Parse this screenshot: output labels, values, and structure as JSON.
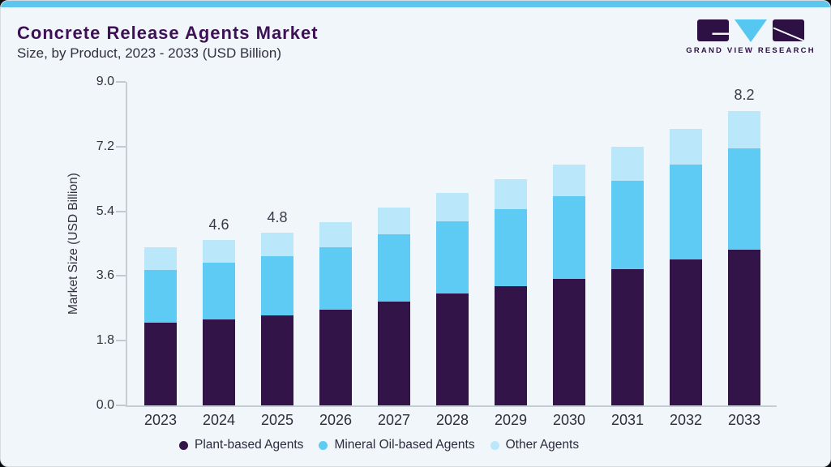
{
  "header": {
    "title": "Concrete Release Agents Market",
    "subtitle": "Size, by Product, 2023 - 2033 (USD Billion)",
    "brand_name": "GRAND VIEW RESEARCH"
  },
  "chart_data": {
    "type": "bar",
    "stacked": true,
    "title": "Concrete Release Agents Market Size, by Product, 2023 - 2033 (USD Billion)",
    "categories": [
      "2023",
      "2024",
      "2025",
      "2026",
      "2027",
      "2028",
      "2029",
      "2030",
      "2031",
      "2032",
      "2033"
    ],
    "series": [
      {
        "key": "plant",
        "name": "Plant-based Agents",
        "color": "#331449",
        "values": [
          2.3,
          2.4,
          2.51,
          2.67,
          2.89,
          3.11,
          3.32,
          3.53,
          3.79,
          4.06,
          4.33
        ]
      },
      {
        "key": "mineral",
        "name": "Mineral Oil-based Agents",
        "color": "#5ecbf5",
        "values": [
          1.47,
          1.56,
          1.63,
          1.72,
          1.86,
          2.01,
          2.14,
          2.29,
          2.46,
          2.65,
          2.83
        ]
      },
      {
        "key": "other",
        "name": "Other Agents",
        "color": "#bae7fa",
        "values": [
          0.63,
          0.64,
          0.66,
          0.71,
          0.75,
          0.78,
          0.84,
          0.88,
          0.95,
          0.99,
          1.04
        ]
      }
    ],
    "totals": [
      4.4,
      4.6,
      4.8,
      5.1,
      5.5,
      5.9,
      6.3,
      6.7,
      7.2,
      7.7,
      8.2
    ],
    "bar_labels": {
      "2024": "4.6",
      "2025": "4.8",
      "2033": "8.2"
    },
    "xlabel": "",
    "ylabel": "Market Size (USD Billion)",
    "yticks": [
      "0.0",
      "1.8",
      "3.6",
      "5.4",
      "7.2",
      "9.0"
    ],
    "ylim": [
      0,
      9
    ],
    "grid": false,
    "legend_position": "bottom"
  },
  "colors": {
    "card_background": "#f1f6fa",
    "top_strip": "#5ec6ee",
    "title_text": "#3e1157",
    "body_text": "#302e3f",
    "axis_line": "#c7cdd4",
    "brand_purple": "#2d1145",
    "brand_blue": "#56c7f0"
  }
}
